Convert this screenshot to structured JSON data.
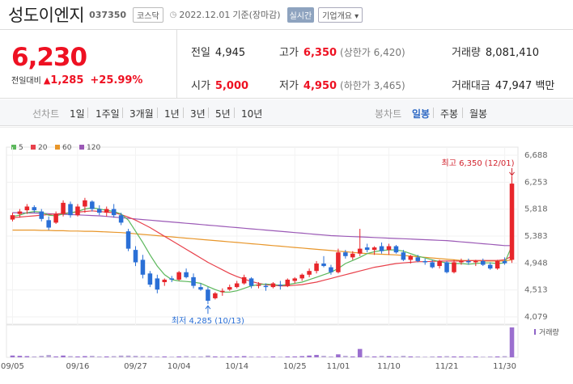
{
  "header": {
    "title": "성도이엔지",
    "code": "037350",
    "market": "코스닥",
    "date": "2022.12.01",
    "date_note": "기준(장마감)",
    "realtime": "실시간",
    "company_info": "기업개요"
  },
  "quote": {
    "price": "6,230",
    "change_label": "전일대비",
    "change": "1,285",
    "change_pct": "+25.99%",
    "prev_label": "전일",
    "prev": "4,945",
    "high_label": "고가",
    "high": "6,350",
    "upper_limit": "(상한가 6,420)",
    "volume_label": "거래량",
    "volume": "8,081,410",
    "open_label": "시가",
    "open": "5,000",
    "low_label": "저가",
    "low": "4,950",
    "lower_limit": "(하한가 3,465)",
    "amount_label": "거래대금",
    "amount": "47,947 백만"
  },
  "tabs": {
    "line_chart": "선차트",
    "periods": [
      "1일",
      "1주일",
      "3개월",
      "1년",
      "3년",
      "5년",
      "10년"
    ],
    "candle_chart": "봉차트",
    "candle_periods": [
      "일봉",
      "주봉",
      "월봉"
    ],
    "active_candle": "일봉"
  },
  "colors": {
    "up": "#e8262b",
    "down": "#2a6fd6",
    "ma5": "#5cb85c",
    "ma20": "#e8414b",
    "ma60": "#e8962a",
    "ma120": "#9b59b6",
    "accent": "#2d68c4"
  },
  "chart_data": {
    "type": "candlestick",
    "legend": [
      "5",
      "20",
      "60",
      "120"
    ],
    "y_ticks": [
      6688,
      6253,
      5818,
      5383,
      4948,
      4513,
      4079
    ],
    "ylim": [
      4079,
      6688
    ],
    "x_ticks": [
      "09/05",
      "09/16",
      "09/27",
      "10/04",
      "10/14",
      "10/25",
      "11/01",
      "11/10",
      "11/21",
      "11/30"
    ],
    "max_annotation": "최고 6,350 (12/01)",
    "min_annotation": "최저 4,285 (10/13)",
    "volume_label": "거래량",
    "candles": [
      {
        "o": 5650,
        "h": 5760,
        "l": 5620,
        "c": 5720
      },
      {
        "o": 5740,
        "h": 5820,
        "l": 5680,
        "c": 5780
      },
      {
        "o": 5800,
        "h": 5900,
        "l": 5740,
        "c": 5860
      },
      {
        "o": 5850,
        "h": 5880,
        "l": 5760,
        "c": 5800
      },
      {
        "o": 5780,
        "h": 5820,
        "l": 5620,
        "c": 5660
      },
      {
        "o": 5640,
        "h": 5700,
        "l": 5480,
        "c": 5520
      },
      {
        "o": 5600,
        "h": 5780,
        "l": 5580,
        "c": 5740
      },
      {
        "o": 5740,
        "h": 5960,
        "l": 5700,
        "c": 5920
      },
      {
        "o": 5900,
        "h": 5940,
        "l": 5680,
        "c": 5720
      },
      {
        "o": 5720,
        "h": 5900,
        "l": 5700,
        "c": 5860
      },
      {
        "o": 5860,
        "h": 6000,
        "l": 5760,
        "c": 5960
      },
      {
        "o": 5940,
        "h": 5960,
        "l": 5780,
        "c": 5820
      },
      {
        "o": 5820,
        "h": 5880,
        "l": 5720,
        "c": 5760
      },
      {
        "o": 5760,
        "h": 5860,
        "l": 5700,
        "c": 5820
      },
      {
        "o": 5820,
        "h": 5900,
        "l": 5680,
        "c": 5720
      },
      {
        "o": 5720,
        "h": 5760,
        "l": 5560,
        "c": 5600
      },
      {
        "o": 5460,
        "h": 5500,
        "l": 5140,
        "c": 5180
      },
      {
        "o": 5160,
        "h": 5220,
        "l": 4900,
        "c": 4960
      },
      {
        "o": 5000,
        "h": 5080,
        "l": 4700,
        "c": 4760
      },
      {
        "o": 4780,
        "h": 4820,
        "l": 4560,
        "c": 4600
      },
      {
        "o": 4700,
        "h": 4760,
        "l": 4460,
        "c": 4520
      },
      {
        "o": 4640,
        "h": 4700,
        "l": 4580,
        "c": 4680
      },
      {
        "o": 4700,
        "h": 4740,
        "l": 4640,
        "c": 4680
      },
      {
        "o": 4680,
        "h": 4820,
        "l": 4660,
        "c": 4800
      },
      {
        "o": 4800,
        "h": 4860,
        "l": 4700,
        "c": 4720
      },
      {
        "o": 4720,
        "h": 4780,
        "l": 4540,
        "c": 4580
      },
      {
        "o": 4560,
        "h": 4620,
        "l": 4500,
        "c": 4520
      },
      {
        "o": 4520,
        "h": 4560,
        "l": 4285,
        "c": 4340
      },
      {
        "o": 4380,
        "h": 4480,
        "l": 4360,
        "c": 4460
      },
      {
        "o": 4480,
        "h": 4540,
        "l": 4420,
        "c": 4500
      },
      {
        "o": 4520,
        "h": 4600,
        "l": 4500,
        "c": 4560
      },
      {
        "o": 4560,
        "h": 4660,
        "l": 4540,
        "c": 4620
      },
      {
        "o": 4620,
        "h": 4760,
        "l": 4600,
        "c": 4720
      },
      {
        "o": 4700,
        "h": 4720,
        "l": 4540,
        "c": 4580
      },
      {
        "o": 4580,
        "h": 4640,
        "l": 4540,
        "c": 4600
      },
      {
        "o": 4580,
        "h": 4620,
        "l": 4500,
        "c": 4560
      },
      {
        "o": 4560,
        "h": 4640,
        "l": 4540,
        "c": 4620
      },
      {
        "o": 4600,
        "h": 4660,
        "l": 4520,
        "c": 4580
      },
      {
        "o": 4580,
        "h": 4700,
        "l": 4560,
        "c": 4680
      },
      {
        "o": 4660,
        "h": 4720,
        "l": 4620,
        "c": 4700
      },
      {
        "o": 4700,
        "h": 4780,
        "l": 4660,
        "c": 4760
      },
      {
        "o": 4760,
        "h": 4860,
        "l": 4720,
        "c": 4820
      },
      {
        "o": 4820,
        "h": 4980,
        "l": 4780,
        "c": 4940
      },
      {
        "o": 4940,
        "h": 5060,
        "l": 4880,
        "c": 4900
      },
      {
        "o": 4880,
        "h": 4920,
        "l": 4760,
        "c": 4800
      },
      {
        "o": 4800,
        "h": 5180,
        "l": 4780,
        "c": 5120
      },
      {
        "o": 5120,
        "h": 5160,
        "l": 5020,
        "c": 5060
      },
      {
        "o": 5040,
        "h": 5140,
        "l": 5000,
        "c": 5100
      },
      {
        "o": 5100,
        "h": 5500,
        "l": 5060,
        "c": 5180
      },
      {
        "o": 5200,
        "h": 5260,
        "l": 5120,
        "c": 5160
      },
      {
        "o": 5160,
        "h": 5220,
        "l": 5080,
        "c": 5200
      },
      {
        "o": 5220,
        "h": 5280,
        "l": 5100,
        "c": 5140
      },
      {
        "o": 5160,
        "h": 5260,
        "l": 5080,
        "c": 5220
      },
      {
        "o": 5220,
        "h": 5240,
        "l": 5100,
        "c": 5120
      },
      {
        "o": 5120,
        "h": 5160,
        "l": 4980,
        "c": 5000
      },
      {
        "o": 5000,
        "h": 5080,
        "l": 4940,
        "c": 5060
      },
      {
        "o": 5040,
        "h": 5080,
        "l": 4960,
        "c": 4980
      },
      {
        "o": 4980,
        "h": 5020,
        "l": 4920,
        "c": 4960
      },
      {
        "o": 4960,
        "h": 5000,
        "l": 4860,
        "c": 4880
      },
      {
        "o": 4900,
        "h": 5000,
        "l": 4860,
        "c": 4980
      },
      {
        "o": 4960,
        "h": 4980,
        "l": 4780,
        "c": 4800
      },
      {
        "o": 4800,
        "h": 5000,
        "l": 4780,
        "c": 4960
      },
      {
        "o": 4960,
        "h": 5020,
        "l": 4920,
        "c": 4980
      },
      {
        "o": 4980,
        "h": 5020,
        "l": 4920,
        "c": 4960
      },
      {
        "o": 4960,
        "h": 5000,
        "l": 4900,
        "c": 4980
      },
      {
        "o": 4980,
        "h": 5020,
        "l": 4900,
        "c": 4920
      },
      {
        "o": 4920,
        "h": 4960,
        "l": 4840,
        "c": 4860
      },
      {
        "o": 4860,
        "h": 5000,
        "l": 4840,
        "c": 4980
      },
      {
        "o": 4980,
        "h": 5040,
        "l": 4920,
        "c": 4945
      },
      {
        "o": 5000,
        "h": 6350,
        "l": 4950,
        "c": 6230
      }
    ],
    "ma": {
      "ma5": [
        5700,
        5720,
        5760,
        5780,
        5770,
        5720,
        5710,
        5740,
        5760,
        5780,
        5820,
        5840,
        5820,
        5800,
        5780,
        5740,
        5640,
        5460,
        5280,
        5080,
        4900,
        4760,
        4680,
        4660,
        4650,
        4640,
        4620,
        4570,
        4520,
        4480,
        4480,
        4500,
        4540,
        4580,
        4600,
        4610,
        4600,
        4590,
        4600,
        4620,
        4640,
        4680,
        4720,
        4760,
        4800,
        4860,
        4940,
        4990,
        5040,
        5100,
        5130,
        5150,
        5160,
        5160,
        5140,
        5100,
        5060,
        5030,
        5000,
        4970,
        4950,
        4940,
        4940,
        4930,
        4940,
        4950,
        4950,
        4940,
        4950,
        5230
      ],
      "ma20": [
        5680,
        5690,
        5700,
        5710,
        5720,
        5730,
        5740,
        5750,
        5760,
        5770,
        5780,
        5790,
        5780,
        5770,
        5760,
        5730,
        5690,
        5640,
        5580,
        5520,
        5450,
        5380,
        5310,
        5240,
        5170,
        5100,
        5030,
        4960,
        4900,
        4840,
        4780,
        4730,
        4690,
        4650,
        4620,
        4600,
        4590,
        4580,
        4580,
        4590,
        4600,
        4620,
        4640,
        4670,
        4700,
        4730,
        4760,
        4790,
        4820,
        4850,
        4880,
        4900,
        4920,
        4940,
        4950,
        4960,
        4970,
        4970,
        4975,
        4980,
        4980,
        4980,
        4980,
        4985,
        4990,
        4990,
        4990,
        4990,
        5000,
        5060
      ],
      "ma60": [
        5480,
        5480,
        5480,
        5480,
        5475,
        5475,
        5470,
        5470,
        5465,
        5465,
        5460,
        5460,
        5455,
        5450,
        5445,
        5440,
        5430,
        5420,
        5410,
        5400,
        5390,
        5380,
        5370,
        5360,
        5350,
        5340,
        5330,
        5320,
        5310,
        5300,
        5290,
        5280,
        5270,
        5260,
        5250,
        5240,
        5230,
        5220,
        5210,
        5200,
        5190,
        5180,
        5170,
        5160,
        5150,
        5140,
        5130,
        5120,
        5110,
        5100,
        5095,
        5090,
        5085,
        5080,
        5070,
        5060,
        5050,
        5040,
        5030,
        5020,
        5010,
        5000,
        4990,
        4990,
        4985,
        4980,
        4980,
        4980,
        4980,
        5000
      ],
      "ma120": [
        5760,
        5760,
        5755,
        5755,
        5750,
        5745,
        5740,
        5735,
        5730,
        5725,
        5720,
        5715,
        5710,
        5700,
        5690,
        5680,
        5670,
        5660,
        5650,
        5640,
        5630,
        5620,
        5610,
        5600,
        5590,
        5580,
        5570,
        5560,
        5550,
        5540,
        5530,
        5520,
        5510,
        5500,
        5490,
        5480,
        5470,
        5460,
        5450,
        5440,
        5430,
        5420,
        5410,
        5400,
        5390,
        5385,
        5380,
        5375,
        5370,
        5365,
        5360,
        5355,
        5350,
        5345,
        5340,
        5335,
        5330,
        5325,
        5320,
        5315,
        5310,
        5300,
        5290,
        5280,
        5270,
        5260,
        5250,
        5240,
        5230,
        5230
      ]
    },
    "volume": [
      6,
      5,
      4,
      3,
      5,
      8,
      3,
      6,
      4,
      3,
      4,
      5,
      3,
      3,
      4,
      6,
      6,
      5,
      4,
      4,
      3,
      3,
      2,
      3,
      4,
      3,
      3,
      6,
      3,
      2,
      3,
      3,
      4,
      3,
      2,
      2,
      3,
      2,
      3,
      3,
      4,
      6,
      8,
      5,
      3,
      10,
      5,
      3,
      28,
      4,
      3,
      5,
      4,
      3,
      5,
      3,
      3,
      2,
      3,
      3,
      4,
      3,
      3,
      3,
      3,
      2,
      3,
      3,
      4,
      100
    ]
  }
}
